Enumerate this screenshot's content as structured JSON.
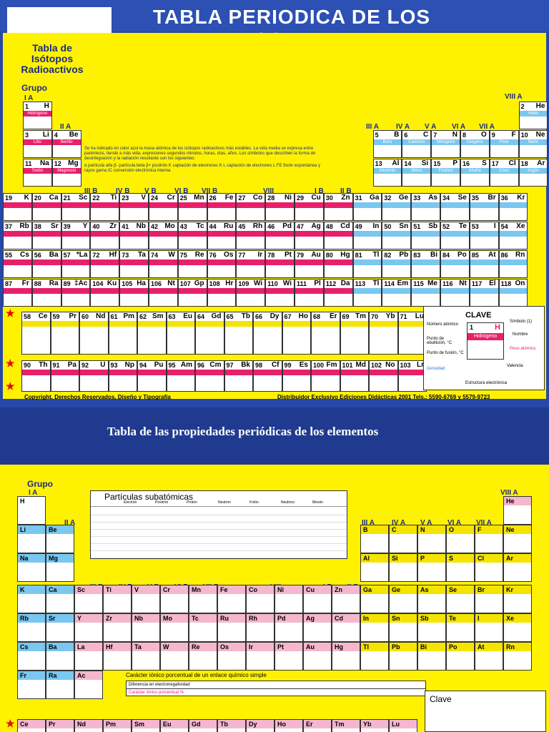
{
  "top": {
    "title": "TABLA PERIODICA DE LOS ELEMENTOS",
    "isotopes_title": "Tabla de Isótopos Radioactivos",
    "grupo_label": "Grupo",
    "group_labels": [
      "I A",
      "II A",
      "III B",
      "IV B",
      "V B",
      "VI B",
      "VII B",
      "VIII",
      "I B",
      "II B",
      "III A",
      "IV A",
      "V A",
      "VI A",
      "VII A",
      "VIII A"
    ],
    "row1": [
      {
        "num": "1",
        "sym": "H",
        "name": "Hidrógeno"
      },
      {
        "num": "2",
        "sym": "He",
        "name": "Helio"
      }
    ],
    "row2": [
      {
        "num": "3",
        "sym": "Li",
        "name": "Litio"
      },
      {
        "num": "4",
        "sym": "Be",
        "name": "Berilio"
      },
      {
        "num": "5",
        "sym": "B",
        "name": "Boro"
      },
      {
        "num": "6",
        "sym": "C",
        "name": "Carbono"
      },
      {
        "num": "7",
        "sym": "N",
        "name": "Nitrógeno"
      },
      {
        "num": "8",
        "sym": "O",
        "name": "Oxígeno"
      },
      {
        "num": "9",
        "sym": "F",
        "name": "Flúor"
      },
      {
        "num": "10",
        "sym": "Ne",
        "name": "Neón"
      }
    ],
    "row3": [
      {
        "num": "11",
        "sym": "Na",
        "name": "Sodio"
      },
      {
        "num": "12",
        "sym": "Mg",
        "name": "Magnesio"
      },
      {
        "num": "13",
        "sym": "Al",
        "name": "Aluminio"
      },
      {
        "num": "14",
        "sym": "Si",
        "name": "Silicio"
      },
      {
        "num": "15",
        "sym": "P",
        "name": "Fósforo"
      },
      {
        "num": "16",
        "sym": "S",
        "name": "Azufre"
      },
      {
        "num": "17",
        "sym": "Cl",
        "name": "Cloro"
      },
      {
        "num": "18",
        "sym": "Ar",
        "name": "Argón"
      }
    ],
    "row4": [
      {
        "num": "19",
        "sym": "K"
      },
      {
        "num": "20",
        "sym": "Ca"
      },
      {
        "num": "21",
        "sym": "Sc"
      },
      {
        "num": "22",
        "sym": "Ti"
      },
      {
        "num": "23",
        "sym": "V"
      },
      {
        "num": "24",
        "sym": "Cr"
      },
      {
        "num": "25",
        "sym": "Mn"
      },
      {
        "num": "26",
        "sym": "Fe"
      },
      {
        "num": "27",
        "sym": "Co"
      },
      {
        "num": "28",
        "sym": "Ni"
      },
      {
        "num": "29",
        "sym": "Cu"
      },
      {
        "num": "30",
        "sym": "Zn"
      },
      {
        "num": "31",
        "sym": "Ga"
      },
      {
        "num": "32",
        "sym": "Ge"
      },
      {
        "num": "33",
        "sym": "As"
      },
      {
        "num": "34",
        "sym": "Se"
      },
      {
        "num": "35",
        "sym": "Br"
      },
      {
        "num": "36",
        "sym": "Kr"
      }
    ],
    "row5": [
      {
        "num": "37",
        "sym": "Rb"
      },
      {
        "num": "38",
        "sym": "Sr"
      },
      {
        "num": "39",
        "sym": "Y"
      },
      {
        "num": "40",
        "sym": "Zr"
      },
      {
        "num": "41",
        "sym": "Nb"
      },
      {
        "num": "42",
        "sym": "Mo"
      },
      {
        "num": "43",
        "sym": "Tc"
      },
      {
        "num": "44",
        "sym": "Ru"
      },
      {
        "num": "45",
        "sym": "Rh"
      },
      {
        "num": "46",
        "sym": "Pd"
      },
      {
        "num": "47",
        "sym": "Ag"
      },
      {
        "num": "48",
        "sym": "Cd"
      },
      {
        "num": "49",
        "sym": "In"
      },
      {
        "num": "50",
        "sym": "Sn"
      },
      {
        "num": "51",
        "sym": "Sb"
      },
      {
        "num": "52",
        "sym": "Te"
      },
      {
        "num": "53",
        "sym": "I"
      },
      {
        "num": "54",
        "sym": "Xe"
      }
    ],
    "row6": [
      {
        "num": "55",
        "sym": "Cs"
      },
      {
        "num": "56",
        "sym": "Ba"
      },
      {
        "num": "57",
        "sym": "*La"
      },
      {
        "num": "72",
        "sym": "Hf"
      },
      {
        "num": "73",
        "sym": "Ta"
      },
      {
        "num": "74",
        "sym": "W"
      },
      {
        "num": "75",
        "sym": "Re"
      },
      {
        "num": "76",
        "sym": "Os"
      },
      {
        "num": "77",
        "sym": "Ir"
      },
      {
        "num": "78",
        "sym": "Pt"
      },
      {
        "num": "79",
        "sym": "Au"
      },
      {
        "num": "80",
        "sym": "Hg"
      },
      {
        "num": "81",
        "sym": "Tl"
      },
      {
        "num": "82",
        "sym": "Pb"
      },
      {
        "num": "83",
        "sym": "Bi"
      },
      {
        "num": "84",
        "sym": "Po"
      },
      {
        "num": "85",
        "sym": "At"
      },
      {
        "num": "86",
        "sym": "Rn"
      }
    ],
    "row7": [
      {
        "num": "87",
        "sym": "Fr"
      },
      {
        "num": "88",
        "sym": "Ra"
      },
      {
        "num": "89",
        "sym": "‡Ac"
      },
      {
        "num": "104",
        "sym": "Ku"
      },
      {
        "num": "105",
        "sym": "Ha"
      },
      {
        "num": "106",
        "sym": "Nt"
      },
      {
        "num": "107",
        "sym": "Gp"
      },
      {
        "num": "108",
        "sym": "Hr"
      },
      {
        "num": "109",
        "sym": "Wi"
      },
      {
        "num": "110",
        "sym": "Wi"
      },
      {
        "num": "111",
        "sym": "Pl"
      },
      {
        "num": "112",
        "sym": "Da"
      },
      {
        "num": "113",
        "sym": "Tl"
      },
      {
        "num": "114",
        "sym": "Em"
      },
      {
        "num": "115",
        "sym": "Me"
      },
      {
        "num": "116",
        "sym": "Nt"
      },
      {
        "num": "117",
        "sym": "El"
      },
      {
        "num": "118",
        "sym": "On"
      }
    ],
    "lanthanides": [
      {
        "num": "58",
        "sym": "Ce"
      },
      {
        "num": "59",
        "sym": "Pr"
      },
      {
        "num": "60",
        "sym": "Nd"
      },
      {
        "num": "61",
        "sym": "Pm"
      },
      {
        "num": "62",
        "sym": "Sm"
      },
      {
        "num": "63",
        "sym": "Eu"
      },
      {
        "num": "64",
        "sym": "Gd"
      },
      {
        "num": "65",
        "sym": "Tb"
      },
      {
        "num": "66",
        "sym": "Dy"
      },
      {
        "num": "67",
        "sym": "Ho"
      },
      {
        "num": "68",
        "sym": "Er"
      },
      {
        "num": "69",
        "sym": "Tm"
      },
      {
        "num": "70",
        "sym": "Yb"
      },
      {
        "num": "71",
        "sym": "Lu"
      }
    ],
    "actinides": [
      {
        "num": "90",
        "sym": "Th"
      },
      {
        "num": "91",
        "sym": "Pa"
      },
      {
        "num": "92",
        "sym": "U"
      },
      {
        "num": "93",
        "sym": "Np"
      },
      {
        "num": "94",
        "sym": "Pu"
      },
      {
        "num": "95",
        "sym": "Am"
      },
      {
        "num": "96",
        "sym": "Cm"
      },
      {
        "num": "97",
        "sym": "Bk"
      },
      {
        "num": "98",
        "sym": "Cf"
      },
      {
        "num": "99",
        "sym": "Es"
      },
      {
        "num": "100",
        "sym": "Fm"
      },
      {
        "num": "101",
        "sym": "Md"
      },
      {
        "num": "102",
        "sym": "No"
      },
      {
        "num": "103",
        "sym": "Lr"
      }
    ],
    "notes": "Se ha indicado en color azul la masa atómica de los isótopos radioactivos más estables. La vida media se expresa entre paréntesis, tiendo a más vida, expresiones segundos minutos, horas, días, años. Los símbolos que describen la forma de desintegración y la radiación resultante son los siguientes:",
    "notes2": "α partícula alfa   β- partícula beta   β+ positrón   K captación de electrones K   L captación de electrones L   FE fisión espontánea   γ rayos gama   IC conversión electrónica interna",
    "clave_title": "CLAVE",
    "clave_labels": [
      "Número atómico",
      "Símbolo (1)",
      "Nombre",
      "Punto de ebullición, °C",
      "Punto de fusión, °C",
      "Peso atómico",
      "Densidad",
      "Valencia",
      "Estructura electrónica"
    ],
    "clave_sample": {
      "num": "1",
      "sym": "H",
      "name": "Hidrógeno"
    },
    "copyright": "Copyright. Derechos Reservados, Diseño y Tipografía",
    "distributor": "Distribuidor Exclusivo Ediciones Didácticas 2001 Tels.: 5590-6769 y 5579-9723"
  },
  "bottom": {
    "title": "Tabla de las propiedades periódicas de los elementos",
    "grupo_label": "Grupo",
    "group_labels": [
      "I A",
      "II A",
      "III B",
      "IV B",
      "V B",
      "VI B",
      "VII B",
      "VIII",
      "I B",
      "II B",
      "III A",
      "IV A",
      "V A",
      "VI A",
      "VII A",
      "VIII A"
    ],
    "particles_title": "Partículas subatómicas",
    "particles_headers": [
      "Electrón",
      "Positrón",
      "Protón",
      "Neutrón",
      "Fotón",
      "Neutrino",
      "Mesón"
    ],
    "ionic_title": "Carácter iónico porcentual de un enlace químico simple",
    "ionic_rows": [
      "Diferencia en electronegatividad",
      "Carácter iónico porcentual %"
    ],
    "clave_title": "Clave",
    "row1": [
      "H",
      "He"
    ],
    "row2": [
      "Li",
      "Be",
      "B",
      "C",
      "N",
      "O",
      "F",
      "Ne"
    ],
    "row3": [
      "Na",
      "Mg",
      "Al",
      "Si",
      "P",
      "S",
      "Cl",
      "Ar"
    ],
    "row4": [
      "K",
      "Ca",
      "Sc",
      "Ti",
      "V",
      "Cr",
      "Mn",
      "Fe",
      "Co",
      "Ni",
      "Cu",
      "Zn",
      "Ga",
      "Ge",
      "As",
      "Se",
      "Br",
      "Kr"
    ],
    "row5": [
      "Rb",
      "Sr",
      "Y",
      "Zr",
      "Nb",
      "Mo",
      "Tc",
      "Ru",
      "Rh",
      "Pd",
      "Ag",
      "Cd",
      "In",
      "Sn",
      "Sb",
      "Te",
      "I",
      "Xe"
    ],
    "row6": [
      "Cs",
      "Ba",
      "La",
      "Hf",
      "Ta",
      "W",
      "Re",
      "Os",
      "Ir",
      "Pt",
      "Au",
      "Hg",
      "Tl",
      "Pb",
      "Bi",
      "Po",
      "At",
      "Rn"
    ],
    "row7": [
      "Fr",
      "Ra",
      "Ac"
    ],
    "lanthanides": [
      "Ce",
      "Pr",
      "Nd",
      "Pm",
      "Sm",
      "Eu",
      "Gd",
      "Tb",
      "Dy",
      "Ho",
      "Er",
      "Tm",
      "Yb",
      "Lu"
    ]
  }
}
